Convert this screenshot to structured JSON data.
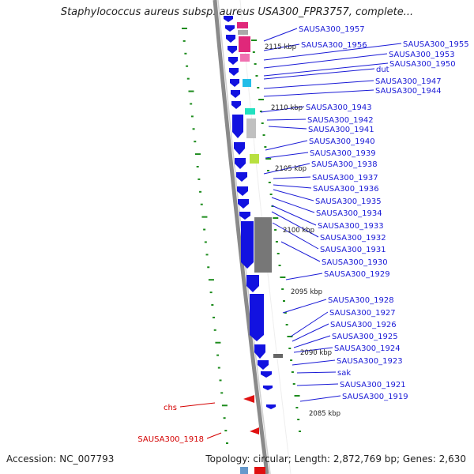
{
  "title": "Staphylococcus aureus subsp. aureus USA300_FPR3757, complete...",
  "footer": {
    "accession": "Accession: NC_007793",
    "summary": "Topology: circular; Length: 2,872,769 bp; Genes: 2,630"
  },
  "colors": {
    "forward_gene": "#1212e0",
    "label_blue": "#1a1ad6",
    "label_red": "#d40000",
    "backbone": "#9a9a9a",
    "tick_green": "#1e8c1e"
  },
  "ruler_labels": [
    "2115 kbp",
    "2110 kbp",
    "2105 kbp",
    "2100 kbp",
    "2095 kbp",
    "2090 kbp",
    "2085 kbp"
  ],
  "gene_labels": [
    "SAUSA300_1957",
    "SAUSA300_1956",
    "SAUSA300_1955",
    "SAUSA300_1953",
    "SAUSA300_1950",
    "dut",
    "SAUSA300_1947",
    "SAUSA300_1944",
    "SAUSA300_1943",
    "SAUSA300_1942",
    "SAUSA300_1941",
    "SAUSA300_1940",
    "SAUSA300_1939",
    "SAUSA300_1938",
    "SAUSA300_1937",
    "SAUSA300_1936",
    "SAUSA300_1935",
    "SAUSA300_1934",
    "SAUSA300_1933",
    "SAUSA300_1932",
    "SAUSA300_1931",
    "SAUSA300_1930",
    "SAUSA300_1929",
    "SAUSA300_1928",
    "SAUSA300_1927",
    "SAUSA300_1926",
    "SAUSA300_1925",
    "SAUSA300_1924",
    "SAUSA300_1923",
    "sak",
    "SAUSA300_1921",
    "SAUSA300_1919"
  ],
  "reverse_gene_labels": [
    "chs",
    "SAUSA300_1918"
  ]
}
